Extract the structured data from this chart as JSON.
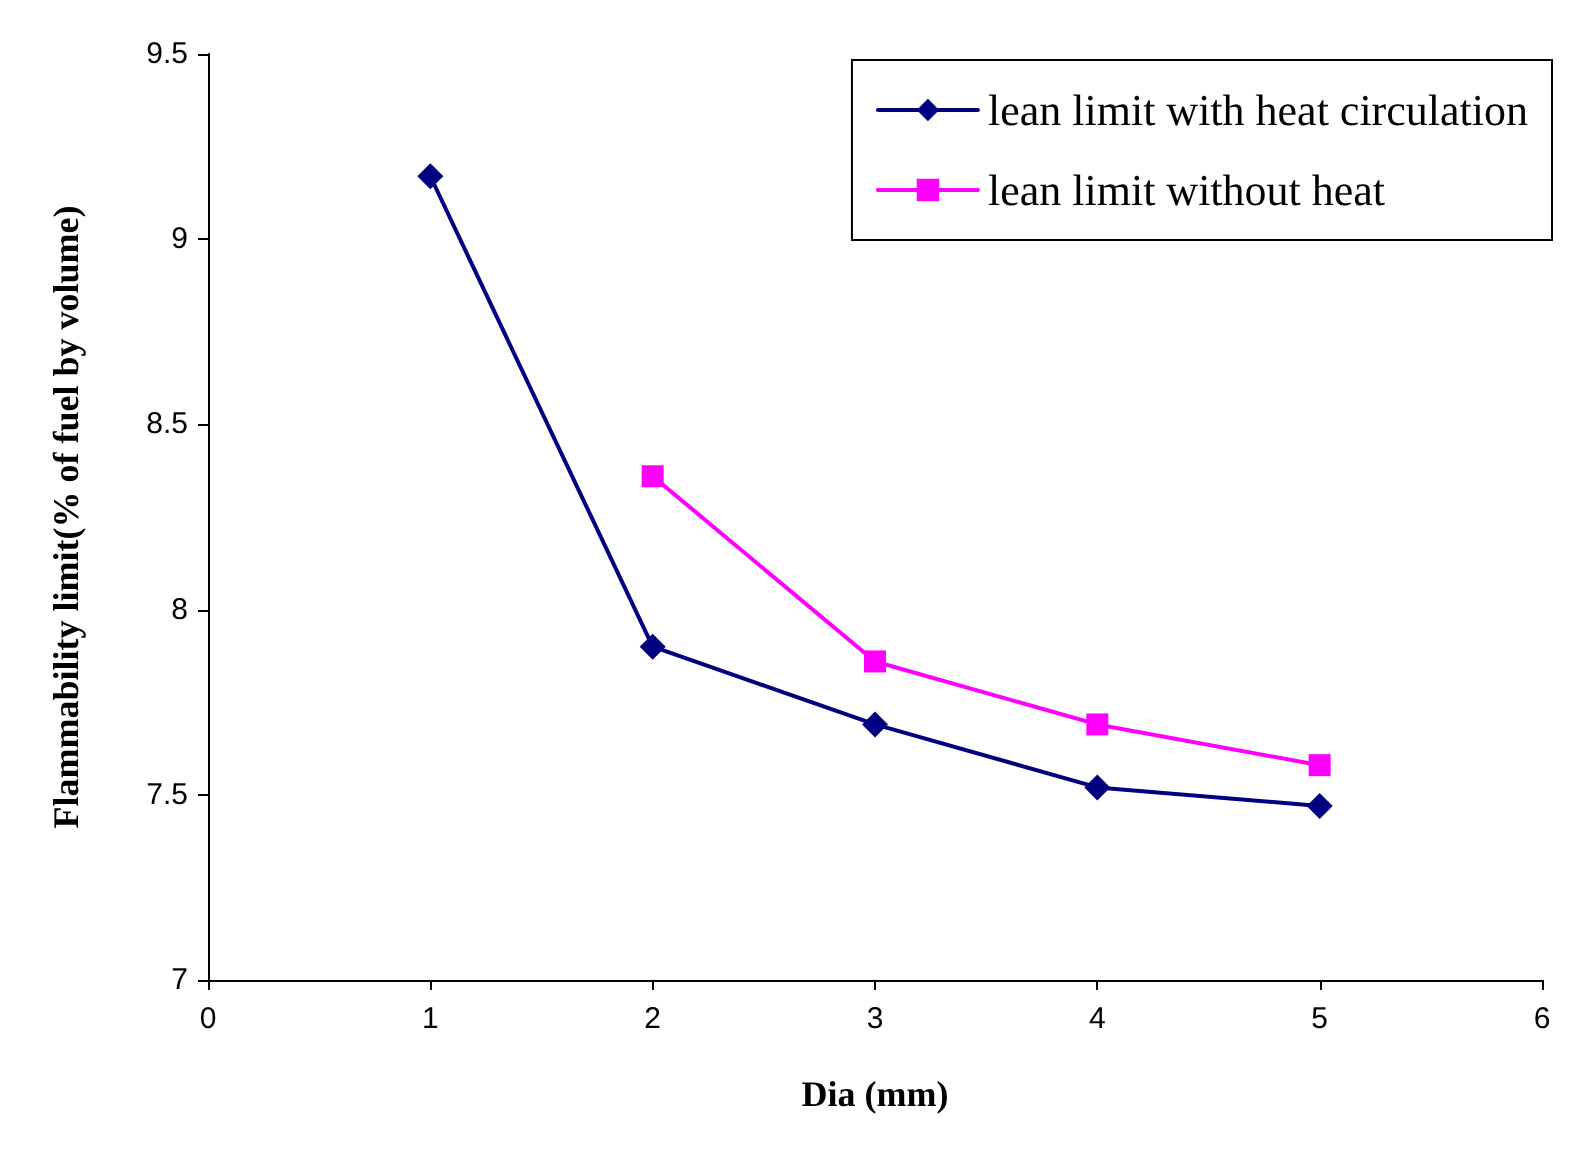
{
  "chart_data": {
    "type": "line",
    "xlabel": "Dia (mm)",
    "ylabel": "Flammability limit(% of fuel by volume)",
    "xlim": [
      0,
      6
    ],
    "xticks": [
      0,
      1,
      2,
      3,
      4,
      5,
      6
    ],
    "ylim": [
      7,
      9.5
    ],
    "yticks": [
      7,
      7.5,
      8,
      8.5,
      9,
      9.5
    ],
    "grid": false,
    "legend": "top right",
    "line_style": "solid",
    "series": [
      {
        "name": "lean limit with heat circulation",
        "color": "#000080",
        "marker": "diamond",
        "x": [
          1,
          2,
          3,
          4,
          5
        ],
        "values": [
          9.17,
          7.9,
          7.69,
          7.52,
          7.47
        ]
      },
      {
        "name": "lean limit without heat",
        "color": "#ff00ff",
        "marker": "square",
        "x": [
          2,
          3,
          4,
          5
        ],
        "values": [
          8.36,
          7.86,
          7.69,
          7.58
        ]
      }
    ]
  }
}
